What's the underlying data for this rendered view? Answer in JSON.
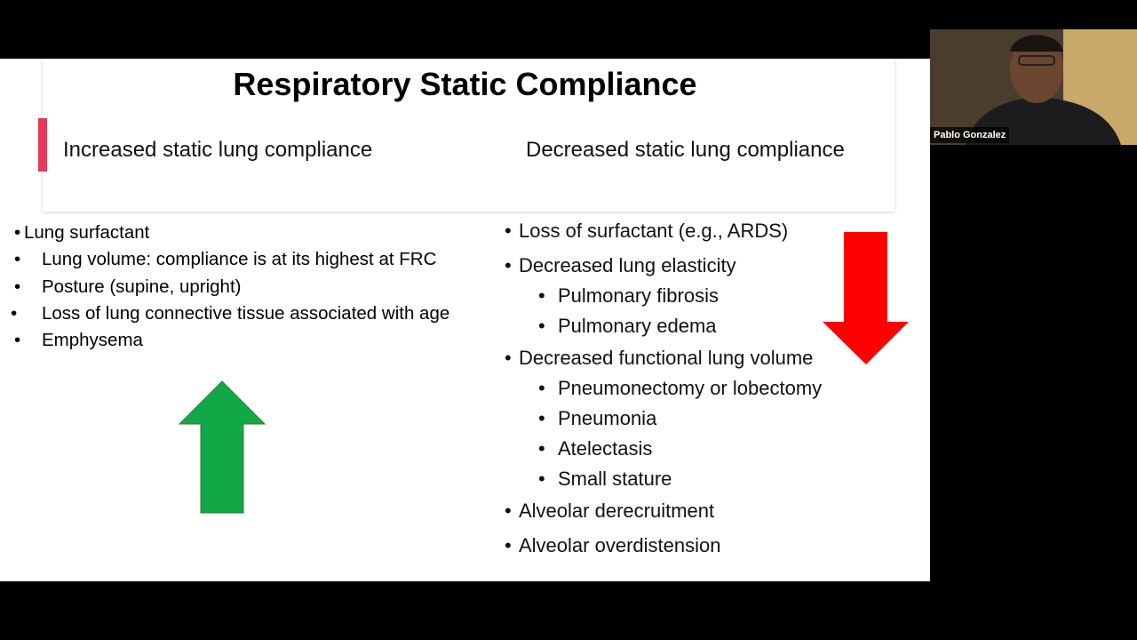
{
  "slide": {
    "title": "Respiratory Static Compliance",
    "left_heading": "Increased static lung compliance",
    "right_heading": "Decreased static lung compliance",
    "left_items": [
      "Lung surfactant",
      "Lung volume: compliance is at its highest at FRC",
      "Posture (supine, upright)",
      "Loss of lung connective tissue associated with age",
      "Emphysema"
    ],
    "right_items": [
      {
        "text": "Loss of surfactant (e.g., ARDS)",
        "subitems": []
      },
      {
        "text": "Decreased lung elasticity",
        "subitems": [
          "Pulmonary fibrosis",
          "Pulmonary edema"
        ]
      },
      {
        "text": "Decreased functional lung volume",
        "subitems": [
          "Pneumonectomy or lobectomy",
          "Pneumonia",
          "Atelectasis",
          "Small stature"
        ]
      },
      {
        "text": "Alveolar derecruitment",
        "subitems": []
      },
      {
        "text": "Alveolar overdistension",
        "subitems": []
      }
    ]
  },
  "video": {
    "participant_name": "Pablo Gonzalez"
  }
}
